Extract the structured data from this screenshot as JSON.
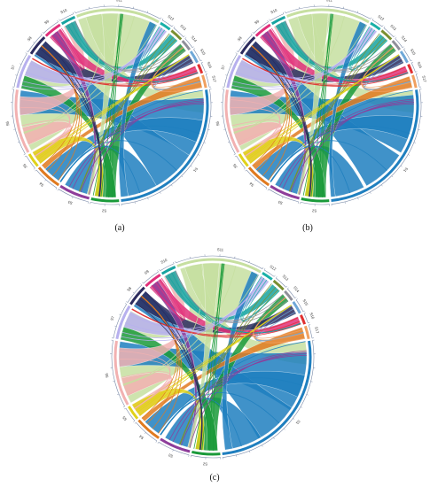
{
  "panels": [
    {
      "id": "a",
      "caption": "(a)"
    },
    {
      "id": "b",
      "caption": "(b)"
    },
    {
      "id": "c",
      "caption": "(c)"
    }
  ],
  "segments": [
    {
      "label": "S1",
      "color": "#1f7fbf"
    },
    {
      "label": "S2",
      "color": "#1a9a3a"
    },
    {
      "label": "S3",
      "color": "#8e3d9a"
    },
    {
      "label": "S4",
      "color": "#e07a1f"
    },
    {
      "label": "S5",
      "color": "#e0d21a"
    },
    {
      "label": "S6",
      "color": "#f2b1b1"
    },
    {
      "label": "S7",
      "color": "#b7b0ee"
    },
    {
      "label": "S8",
      "color": "#2b2b5e"
    },
    {
      "label": "S9",
      "color": "#e0307a"
    },
    {
      "label": "S10",
      "color": "#18a3a0"
    },
    {
      "label": "S11",
      "color": "#c6dfa0"
    },
    {
      "label": "S12",
      "color": "#1ab0a8"
    },
    {
      "label": "S13",
      "color": "#7a8f30"
    },
    {
      "label": "S14",
      "color": "#8f8f9a"
    },
    {
      "label": "S15",
      "color": "#6fa8d8"
    },
    {
      "label": "S16",
      "color": "#e03030"
    },
    {
      "label": "S17",
      "color": "#f0a060"
    }
  ]
}
